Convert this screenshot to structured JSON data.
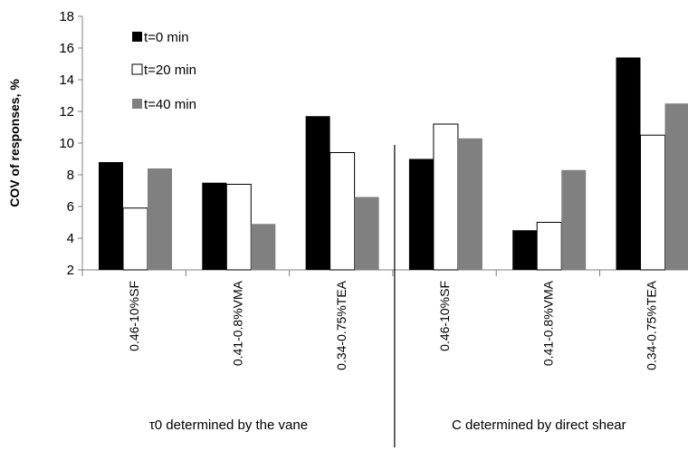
{
  "chart_data": {
    "type": "bar",
    "ylabel": "COV of responses, %",
    "ylim": [
      2,
      18
    ],
    "yticks": [
      2,
      4,
      6,
      8,
      10,
      12,
      14,
      16,
      18
    ],
    "grid": false,
    "legend_position": "top-left",
    "categories": [
      "0.46-10%SF",
      "0.41-0.8%VMA",
      "0.34-0.75%TEA",
      "0.46-10%SF",
      "0.41-0.8%VMA",
      "0.34-0.75%TEA"
    ],
    "groups": [
      {
        "label": "τ0 determined by the vane",
        "categories": [
          0,
          1,
          2
        ]
      },
      {
        "label": "C determined by direct shear",
        "categories": [
          3,
          4,
          5
        ]
      }
    ],
    "series": [
      {
        "name": "t=0 min",
        "color": "#000000",
        "values": [
          8.8,
          7.5,
          11.7,
          9.0,
          4.5,
          15.4
        ]
      },
      {
        "name": "t=20 min",
        "color": "#ffffff",
        "values": [
          5.9,
          7.4,
          9.4,
          11.2,
          5.0,
          10.5
        ]
      },
      {
        "name": "t=40 min",
        "color": "#808080",
        "values": [
          8.4,
          4.9,
          6.6,
          10.3,
          8.3,
          12.5
        ]
      }
    ]
  }
}
